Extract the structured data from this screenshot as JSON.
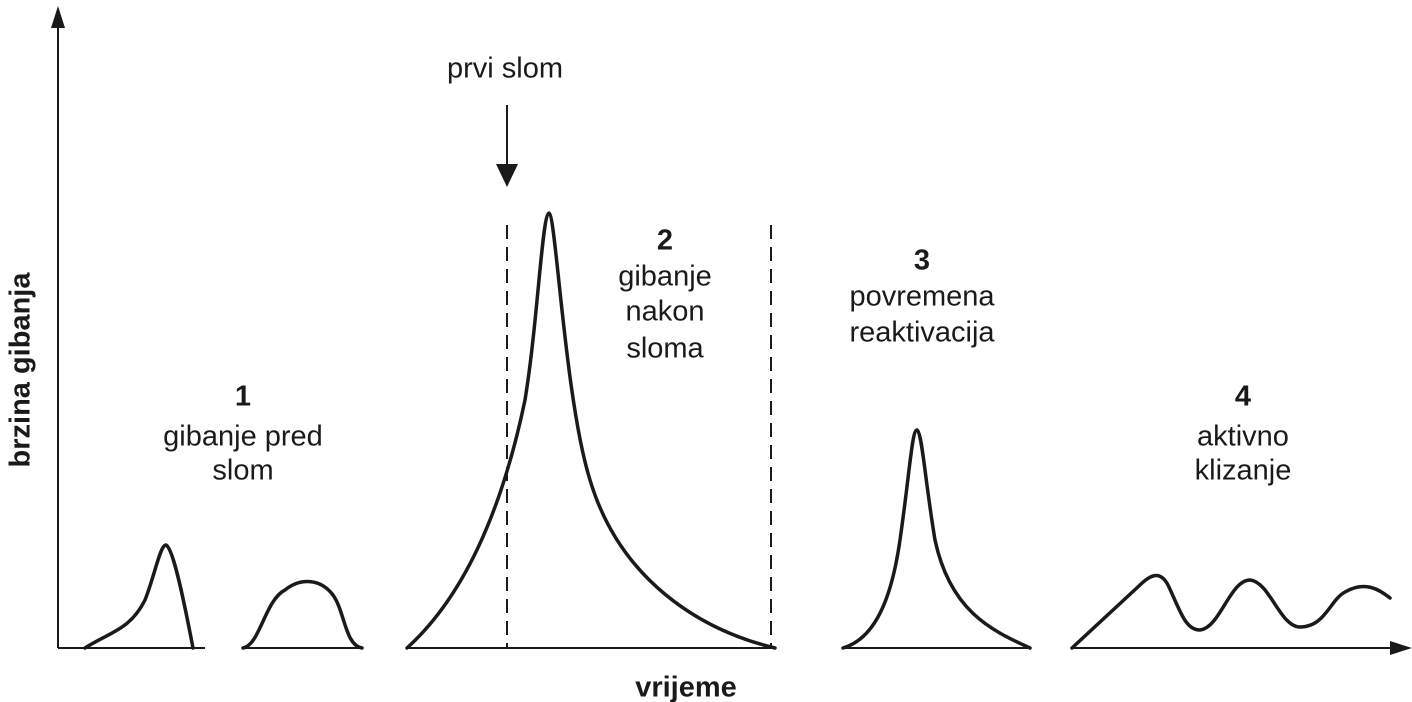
{
  "axes": {
    "y_label": "brzina gibanja",
    "x_label": "vrijeme"
  },
  "annotation": "prvi slom",
  "stages": [
    {
      "number": "1",
      "lines": [
        "gibanje pred",
        "slom"
      ]
    },
    {
      "number": "2",
      "lines": [
        "gibanje",
        "nakon",
        "sloma"
      ]
    },
    {
      "number": "3",
      "lines": [
        "povremena",
        "reaktivacija"
      ]
    },
    {
      "number": "4",
      "lines": [
        "aktivno",
        "klizanje"
      ]
    }
  ]
}
